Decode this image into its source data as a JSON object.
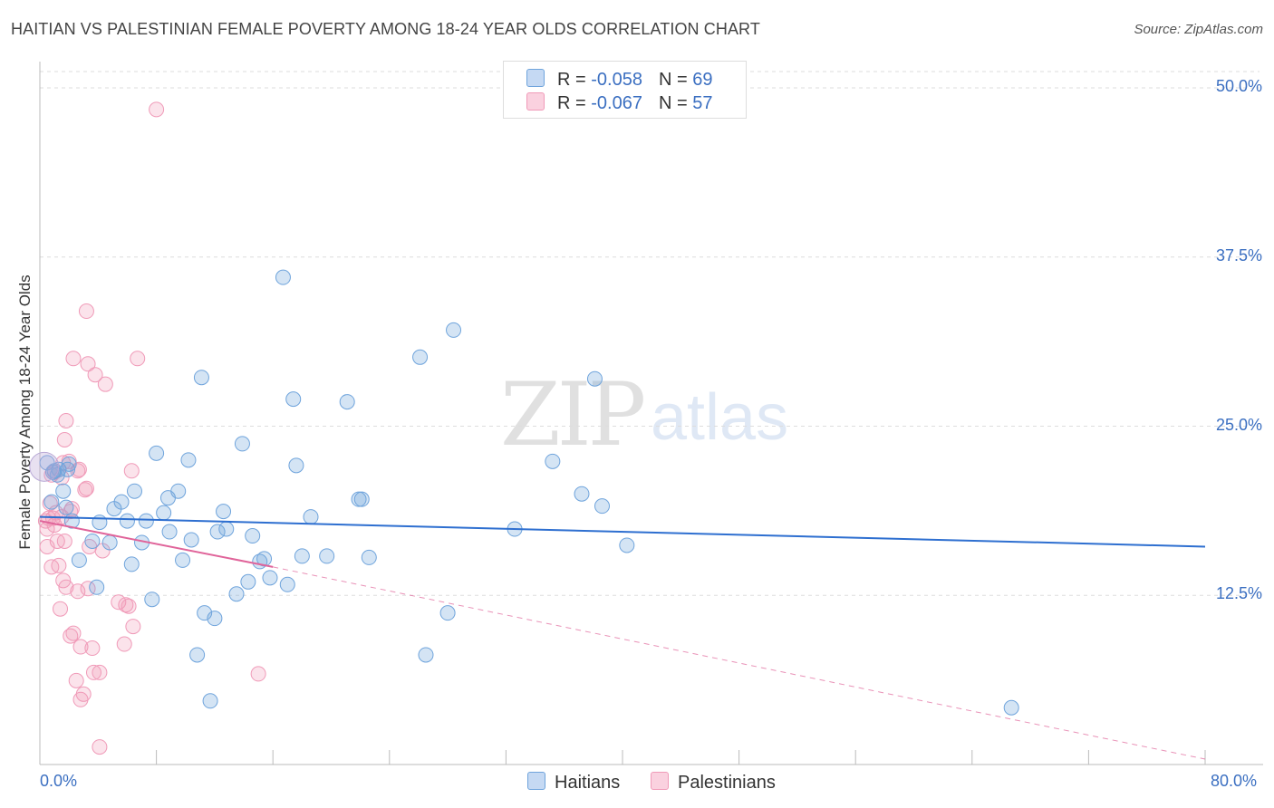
{
  "title": "HAITIAN VS PALESTINIAN FEMALE POVERTY AMONG 18-24 YEAR OLDS CORRELATION CHART",
  "source": "Source: ZipAtlas.com",
  "watermark": {
    "zip": "ZIP",
    "atlas": "atlas"
  },
  "colors": {
    "haitians": "#6fa4dc",
    "palestinians": "#f09ab8",
    "trend_h": "#2e6fd0",
    "trend_p": "#e0649a",
    "grid": "#dddddd",
    "axis_text": "#3b6fc1"
  },
  "legend": {
    "haitians": {
      "r_label": "R = ",
      "r_value": "-0.058",
      "n_label": "N = ",
      "n_value": "69"
    },
    "palestinians": {
      "r_label": "R = ",
      "r_value": "-0.067",
      "n_label": "N = ",
      "n_value": "57"
    }
  },
  "chart_data": {
    "type": "scatter",
    "xlabel": "",
    "ylabel": "Female Poverty Among 18-24 Year Olds",
    "xlim": [
      0,
      80
    ],
    "ylim": [
      0,
      50
    ],
    "x_tick_labels": [
      "0.0%",
      "80.0%"
    ],
    "y_ticks": [
      12.5,
      25.0,
      37.5,
      50.0
    ],
    "y_tick_labels": [
      "12.5%",
      "25.0%",
      "37.5%",
      "50.0%"
    ],
    "grid": true,
    "legend_placement": "bottom",
    "series": [
      {
        "name": "Haitians",
        "points": [
          [
            0.5,
            22.3
          ],
          [
            0.8,
            19.4
          ],
          [
            0.9,
            21.6
          ],
          [
            1.0,
            21.7
          ],
          [
            1.3,
            21.8
          ],
          [
            1.6,
            20.2
          ],
          [
            1.8,
            19.0
          ],
          [
            1.9,
            21.8
          ],
          [
            2.0,
            22.2
          ],
          [
            2.2,
            18.0
          ],
          [
            2.7,
            15.1
          ],
          [
            3.9,
            13.1
          ],
          [
            3.6,
            16.5
          ],
          [
            4.1,
            17.9
          ],
          [
            4.8,
            16.4
          ],
          [
            5.1,
            18.9
          ],
          [
            5.6,
            19.4
          ],
          [
            6.0,
            18.0
          ],
          [
            6.3,
            14.8
          ],
          [
            6.5,
            20.2
          ],
          [
            7.0,
            16.4
          ],
          [
            7.3,
            18.0
          ],
          [
            7.7,
            12.2
          ],
          [
            8.0,
            23.0
          ],
          [
            8.5,
            18.6
          ],
          [
            8.8,
            19.7
          ],
          [
            8.9,
            17.2
          ],
          [
            9.5,
            20.2
          ],
          [
            9.8,
            15.1
          ],
          [
            10.2,
            22.5
          ],
          [
            10.4,
            16.6
          ],
          [
            10.8,
            8.1
          ],
          [
            11.1,
            28.6
          ],
          [
            11.3,
            11.2
          ],
          [
            11.7,
            4.7
          ],
          [
            12.0,
            10.8
          ],
          [
            12.2,
            17.2
          ],
          [
            12.6,
            18.7
          ],
          [
            12.8,
            17.4
          ],
          [
            13.9,
            23.7
          ],
          [
            13.5,
            12.6
          ],
          [
            14.3,
            13.5
          ],
          [
            14.6,
            16.9
          ],
          [
            15.1,
            15.0
          ],
          [
            15.4,
            15.2
          ],
          [
            15.8,
            13.8
          ],
          [
            16.7,
            36.0
          ],
          [
            17.0,
            13.3
          ],
          [
            17.4,
            27.0
          ],
          [
            17.6,
            22.1
          ],
          [
            18.0,
            15.4
          ],
          [
            18.6,
            18.3
          ],
          [
            19.7,
            15.4
          ],
          [
            21.1,
            26.8
          ],
          [
            21.9,
            19.6
          ],
          [
            22.1,
            19.6
          ],
          [
            22.6,
            15.3
          ],
          [
            26.1,
            30.1
          ],
          [
            26.5,
            8.1
          ],
          [
            28.0,
            11.2
          ],
          [
            28.4,
            32.1
          ],
          [
            32.6,
            17.4
          ],
          [
            35.2,
            22.4
          ],
          [
            37.2,
            20.0
          ],
          [
            38.1,
            28.5
          ],
          [
            38.6,
            19.1
          ],
          [
            40.3,
            16.2
          ],
          [
            66.7,
            4.2
          ],
          [
            1.2,
            21.4
          ]
        ],
        "trend": [
          [
            0,
            18.3
          ],
          [
            80,
            16.1
          ]
        ]
      },
      {
        "name": "Palestinians",
        "points": [
          [
            0.4,
            18.0
          ],
          [
            0.5,
            17.4
          ],
          [
            0.5,
            16.1
          ],
          [
            0.6,
            18.2
          ],
          [
            0.7,
            19.3
          ],
          [
            0.8,
            14.6
          ],
          [
            0.8,
            21.4
          ],
          [
            0.9,
            18.2
          ],
          [
            1.0,
            17.7
          ],
          [
            1.0,
            21.6
          ],
          [
            1.1,
            18.6
          ],
          [
            1.2,
            16.5
          ],
          [
            1.3,
            14.7
          ],
          [
            1.5,
            21.2
          ],
          [
            1.5,
            18.3
          ],
          [
            1.6,
            22.3
          ],
          [
            1.6,
            13.6
          ],
          [
            1.7,
            24.0
          ],
          [
            1.7,
            16.5
          ],
          [
            1.8,
            13.1
          ],
          [
            1.8,
            25.4
          ],
          [
            2.0,
            22.4
          ],
          [
            2.1,
            18.7
          ],
          [
            2.1,
            9.5
          ],
          [
            2.2,
            18.9
          ],
          [
            2.3,
            9.7
          ],
          [
            2.3,
            30.0
          ],
          [
            2.5,
            6.2
          ],
          [
            2.6,
            12.8
          ],
          [
            2.6,
            21.7
          ],
          [
            2.7,
            21.8
          ],
          [
            2.8,
            4.8
          ],
          [
            2.8,
            8.7
          ],
          [
            3.0,
            5.2
          ],
          [
            3.1,
            20.3
          ],
          [
            3.2,
            20.4
          ],
          [
            3.2,
            33.5
          ],
          [
            3.3,
            29.6
          ],
          [
            3.3,
            13.0
          ],
          [
            3.4,
            16.1
          ],
          [
            3.6,
            8.6
          ],
          [
            3.7,
            6.8
          ],
          [
            3.8,
            28.8
          ],
          [
            4.1,
            6.8
          ],
          [
            4.1,
            1.3
          ],
          [
            4.3,
            15.8
          ],
          [
            4.5,
            28.1
          ],
          [
            5.4,
            12.0
          ],
          [
            5.8,
            8.9
          ],
          [
            5.9,
            11.8
          ],
          [
            6.1,
            11.7
          ],
          [
            6.3,
            21.7
          ],
          [
            6.4,
            10.2
          ],
          [
            6.7,
            30.0
          ],
          [
            8.0,
            48.4
          ],
          [
            15.0,
            6.7
          ],
          [
            1.4,
            11.5
          ]
        ],
        "trend": [
          [
            0,
            18.0
          ],
          [
            16,
            14.6
          ]
        ],
        "trend_extension": [
          [
            16,
            14.6
          ],
          [
            80,
            0.4
          ]
        ]
      }
    ]
  },
  "bottom_legend": {
    "haitians": "Haitians",
    "palestinians": "Palestinians"
  }
}
